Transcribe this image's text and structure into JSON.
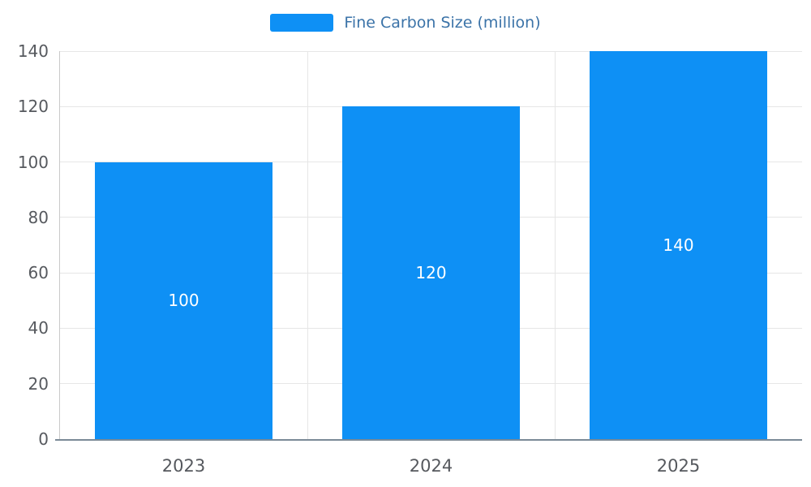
{
  "chart_data": {
    "type": "bar",
    "categories": [
      "2023",
      "2024",
      "2025"
    ],
    "series": [
      {
        "name": "Fine Carbon Size (million)",
        "values": [
          100,
          120,
          140
        ]
      }
    ],
    "title": "",
    "xlabel": "",
    "ylabel": "",
    "ylim": [
      0,
      140
    ],
    "yticks": [
      0,
      20,
      40,
      60,
      80,
      100,
      120,
      140
    ],
    "grid": true,
    "legend_position": "top",
    "bar_width_fraction": 0.72,
    "value_label_position": "inside-middle",
    "colors": {
      "bar": "#0e90f5",
      "value_label": "#ffffff",
      "axis_text": "#56595e",
      "legend_text": "#3b73a8",
      "gridline": "#e6e6e6",
      "y_axis_line": "#c9c9c9",
      "x_axis_line": "#7b8a97"
    }
  }
}
